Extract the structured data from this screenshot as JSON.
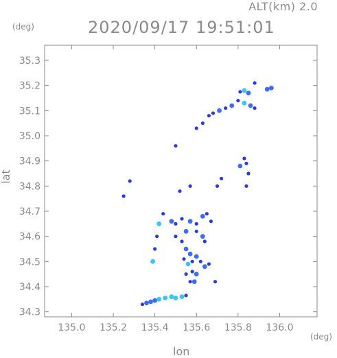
{
  "header": {
    "altitude_label": "ALT(km)  2.0",
    "datetime": "2020/09/17  19:51:01"
  },
  "chart_data": {
    "type": "scatter",
    "title": "2020/09/17  19:51:01",
    "xlabel": "lon",
    "ylabel": "lat",
    "x_unit": "(deg)",
    "y_unit": "(deg)",
    "xlim": [
      134.87,
      136.18
    ],
    "ylim": [
      34.28,
      35.36
    ],
    "x_ticks": [
      135.0,
      135.2,
      135.4,
      135.6,
      135.8,
      136.0
    ],
    "x_tick_labels": [
      "135.0",
      "135.2",
      "135.4",
      "135.6",
      "135.8",
      "136.0"
    ],
    "y_ticks": [
      34.3,
      34.4,
      34.5,
      34.6,
      34.7,
      34.8,
      34.9,
      35.0,
      35.1,
      35.2,
      35.3
    ],
    "y_tick_labels": [
      "34.3",
      "34.4",
      "34.5",
      "34.6",
      "34.7",
      "34.8",
      "34.9",
      "35.0",
      "35.1",
      "35.2",
      "35.3"
    ],
    "grid": false,
    "colors": {
      "axis": "#8a8a8a",
      "echo_low": "#2b3bd6",
      "echo_mid": "#3f6df0",
      "echo_high": "#39c6ee"
    },
    "points": [
      {
        "x": 135.88,
        "y": 35.21,
        "level": "low"
      },
      {
        "x": 135.96,
        "y": 35.19,
        "level": "mid"
      },
      {
        "x": 135.94,
        "y": 35.185,
        "level": "mid"
      },
      {
        "x": 135.83,
        "y": 35.18,
        "level": "high"
      },
      {
        "x": 135.81,
        "y": 35.175,
        "level": "low"
      },
      {
        "x": 135.85,
        "y": 35.17,
        "level": "mid"
      },
      {
        "x": 135.8,
        "y": 35.14,
        "level": "low"
      },
      {
        "x": 135.83,
        "y": 35.13,
        "level": "high"
      },
      {
        "x": 135.86,
        "y": 35.12,
        "level": "mid"
      },
      {
        "x": 135.88,
        "y": 35.11,
        "level": "low"
      },
      {
        "x": 135.77,
        "y": 35.12,
        "level": "mid"
      },
      {
        "x": 135.74,
        "y": 35.11,
        "level": "low"
      },
      {
        "x": 135.71,
        "y": 35.1,
        "level": "mid"
      },
      {
        "x": 135.68,
        "y": 35.09,
        "level": "low"
      },
      {
        "x": 135.66,
        "y": 35.08,
        "level": "low"
      },
      {
        "x": 135.63,
        "y": 35.05,
        "level": "low"
      },
      {
        "x": 135.6,
        "y": 35.03,
        "level": "low"
      },
      {
        "x": 135.5,
        "y": 34.96,
        "level": "low"
      },
      {
        "x": 135.83,
        "y": 34.91,
        "level": "low"
      },
      {
        "x": 135.84,
        "y": 34.89,
        "level": "low"
      },
      {
        "x": 135.81,
        "y": 34.88,
        "level": "mid"
      },
      {
        "x": 135.85,
        "y": 34.85,
        "level": "low"
      },
      {
        "x": 135.84,
        "y": 34.8,
        "level": "low"
      },
      {
        "x": 135.72,
        "y": 34.83,
        "level": "low"
      },
      {
        "x": 135.7,
        "y": 34.8,
        "level": "low"
      },
      {
        "x": 135.28,
        "y": 34.82,
        "level": "low"
      },
      {
        "x": 135.25,
        "y": 34.76,
        "level": "low"
      },
      {
        "x": 135.57,
        "y": 34.8,
        "level": "low"
      },
      {
        "x": 135.52,
        "y": 34.78,
        "level": "low"
      },
      {
        "x": 135.44,
        "y": 34.69,
        "level": "low"
      },
      {
        "x": 135.42,
        "y": 34.65,
        "level": "high"
      },
      {
        "x": 135.41,
        "y": 34.6,
        "level": "low"
      },
      {
        "x": 135.48,
        "y": 34.66,
        "level": "mid"
      },
      {
        "x": 135.5,
        "y": 34.65,
        "level": "low"
      },
      {
        "x": 135.53,
        "y": 34.67,
        "level": "low"
      },
      {
        "x": 135.57,
        "y": 34.66,
        "level": "mid"
      },
      {
        "x": 135.6,
        "y": 34.65,
        "level": "low"
      },
      {
        "x": 135.63,
        "y": 34.68,
        "level": "mid"
      },
      {
        "x": 135.65,
        "y": 34.69,
        "level": "low"
      },
      {
        "x": 135.67,
        "y": 34.66,
        "level": "low"
      },
      {
        "x": 135.6,
        "y": 34.62,
        "level": "low"
      },
      {
        "x": 135.63,
        "y": 34.6,
        "level": "mid"
      },
      {
        "x": 135.64,
        "y": 34.58,
        "level": "low"
      },
      {
        "x": 135.55,
        "y": 34.62,
        "level": "mid"
      },
      {
        "x": 135.53,
        "y": 34.58,
        "level": "low"
      },
      {
        "x": 135.5,
        "y": 34.6,
        "level": "low"
      },
      {
        "x": 135.4,
        "y": 34.55,
        "level": "low"
      },
      {
        "x": 135.39,
        "y": 34.5,
        "level": "high"
      },
      {
        "x": 135.55,
        "y": 34.55,
        "level": "mid"
      },
      {
        "x": 135.57,
        "y": 34.53,
        "level": "mid"
      },
      {
        "x": 135.54,
        "y": 34.51,
        "level": "low"
      },
      {
        "x": 135.56,
        "y": 34.49,
        "level": "high"
      },
      {
        "x": 135.58,
        "y": 34.5,
        "level": "low"
      },
      {
        "x": 135.6,
        "y": 34.52,
        "level": "mid"
      },
      {
        "x": 135.62,
        "y": 34.5,
        "level": "low"
      },
      {
        "x": 135.64,
        "y": 34.48,
        "level": "mid"
      },
      {
        "x": 135.66,
        "y": 34.49,
        "level": "low"
      },
      {
        "x": 135.58,
        "y": 34.46,
        "level": "low"
      },
      {
        "x": 135.6,
        "y": 34.45,
        "level": "mid"
      },
      {
        "x": 135.55,
        "y": 34.45,
        "level": "low"
      },
      {
        "x": 135.57,
        "y": 34.42,
        "level": "low"
      },
      {
        "x": 135.59,
        "y": 34.42,
        "level": "mid"
      },
      {
        "x": 135.69,
        "y": 34.42,
        "level": "low"
      },
      {
        "x": 135.48,
        "y": 34.36,
        "level": "high"
      },
      {
        "x": 135.45,
        "y": 34.355,
        "level": "high"
      },
      {
        "x": 135.42,
        "y": 34.35,
        "level": "high"
      },
      {
        "x": 135.4,
        "y": 34.345,
        "level": "mid"
      },
      {
        "x": 135.38,
        "y": 34.34,
        "level": "mid"
      },
      {
        "x": 135.36,
        "y": 34.335,
        "level": "mid"
      },
      {
        "x": 135.34,
        "y": 34.33,
        "level": "low"
      },
      {
        "x": 135.5,
        "y": 34.355,
        "level": "high"
      },
      {
        "x": 135.53,
        "y": 34.36,
        "level": "high"
      },
      {
        "x": 135.55,
        "y": 34.365,
        "level": "low"
      }
    ]
  }
}
